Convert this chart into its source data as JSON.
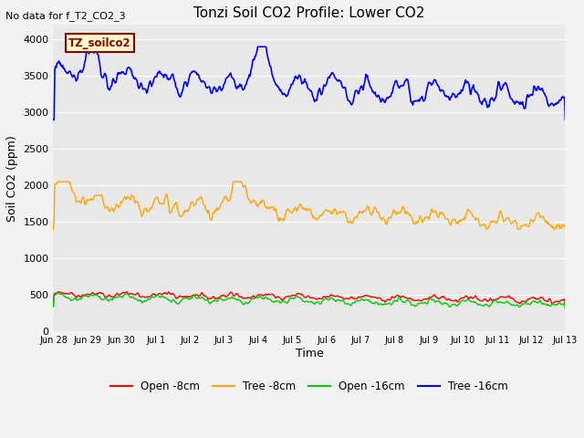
{
  "title": "Tonzi Soil CO2 Profile: Lower CO2",
  "no_data_text": "No data for f_T2_CO2_3",
  "ylabel": "Soil CO2 (ppm)",
  "xlabel": "Time",
  "ylim": [
    0,
    4200
  ],
  "yticks": [
    0,
    500,
    1000,
    1500,
    2000,
    2500,
    3000,
    3500,
    4000
  ],
  "legend_box_label": "TZ_soilco2",
  "legend_box_bg": "#ffffcc",
  "legend_box_edge": "#8b0000",
  "plot_bg_color": "#e8e8e8",
  "fig_bg_color": "#f2f2f2",
  "line_colors": {
    "open8": "#ff0000",
    "tree8": "#ffa500",
    "open16": "#00cc00",
    "tree16": "#0000ff"
  },
  "legend_labels": [
    "Open -8cm",
    "Tree -8cm",
    "Open -16cm",
    "Tree -16cm"
  ],
  "xtick_labels": [
    "Jun 28",
    "Jun 29",
    "Jun 30",
    "Jul 1",
    "Jul 2",
    "Jul 3",
    "Jul 4",
    "Jul 5",
    "Jul 6",
    "Jul 7",
    "Jul 8",
    "Jul 9",
    "Jul 10",
    "Jul 11",
    "Jul 12",
    "Jul 13"
  ]
}
